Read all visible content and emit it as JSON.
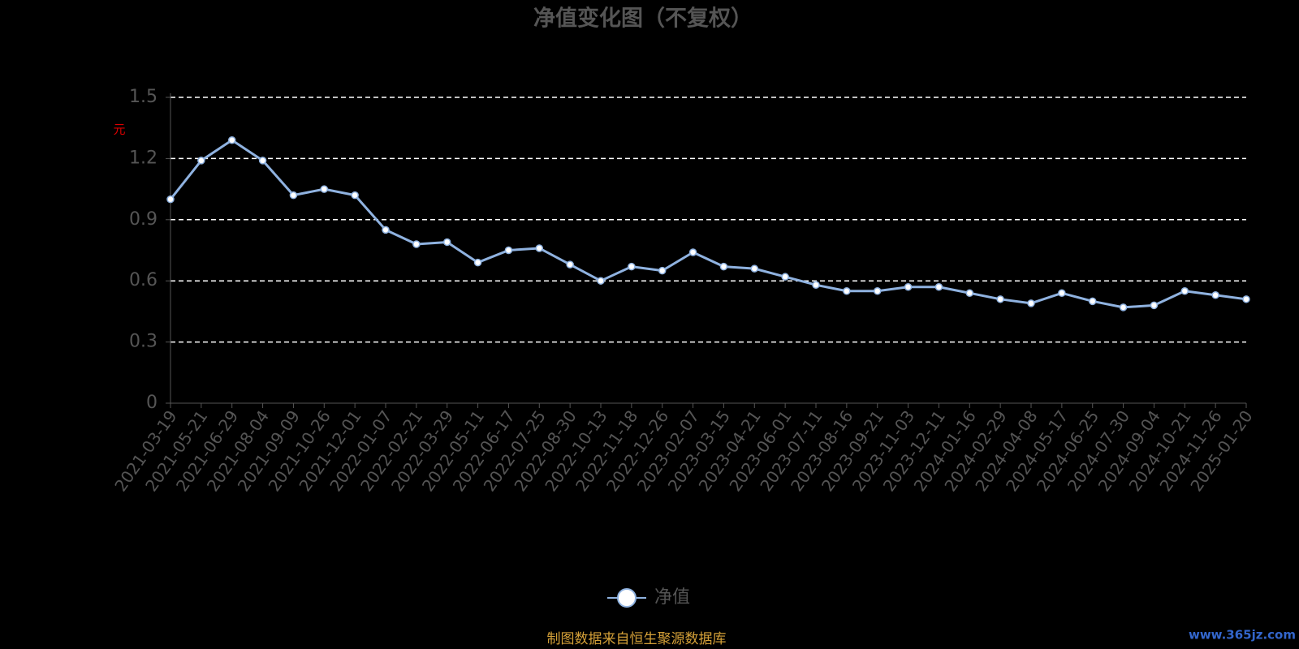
{
  "chart_data": {
    "type": "line",
    "title": "净值变化图（不复权）",
    "y_label": "元",
    "categories": [
      "2021-03-19",
      "2021-05-21",
      "2021-06-29",
      "2021-08-04",
      "2021-09-09",
      "2021-10-26",
      "2021-12-01",
      "2022-01-07",
      "2022-02-21",
      "2022-03-29",
      "2022-05-11",
      "2022-06-17",
      "2022-07-25",
      "2022-08-30",
      "2022-10-13",
      "2022-11-18",
      "2022-12-26",
      "2023-02-07",
      "2023-03-15",
      "2023-04-21",
      "2023-06-01",
      "2023-07-11",
      "2023-08-16",
      "2023-09-21",
      "2023-11-03",
      "2023-12-11",
      "2024-01-16",
      "2024-02-29",
      "2024-04-08",
      "2024-05-17",
      "2024-06-25",
      "2024-07-30",
      "2024-09-04",
      "2024-10-21",
      "2024-11-26",
      "2025-01-20"
    ],
    "series": [
      {
        "name": "净值",
        "color": "#8fb2e0",
        "values": [
          1.0,
          1.19,
          1.29,
          1.19,
          1.02,
          1.05,
          1.02,
          0.85,
          0.78,
          0.79,
          0.69,
          0.75,
          0.76,
          0.68,
          0.6,
          0.67,
          0.65,
          0.74,
          0.67,
          0.66,
          0.62,
          0.58,
          0.55,
          0.55,
          0.57,
          0.57,
          0.54,
          0.51,
          0.49,
          0.54,
          0.5,
          0.47,
          0.48,
          0.55,
          0.53,
          0.51
        ]
      }
    ],
    "ylim": [
      0,
      1.5
    ],
    "yticks": [
      0,
      0.3,
      0.6,
      0.9,
      1.2,
      1.5
    ],
    "grid": true
  },
  "footer": "制图数据来自恒生聚源数据库",
  "watermark": "www.365jz.com"
}
